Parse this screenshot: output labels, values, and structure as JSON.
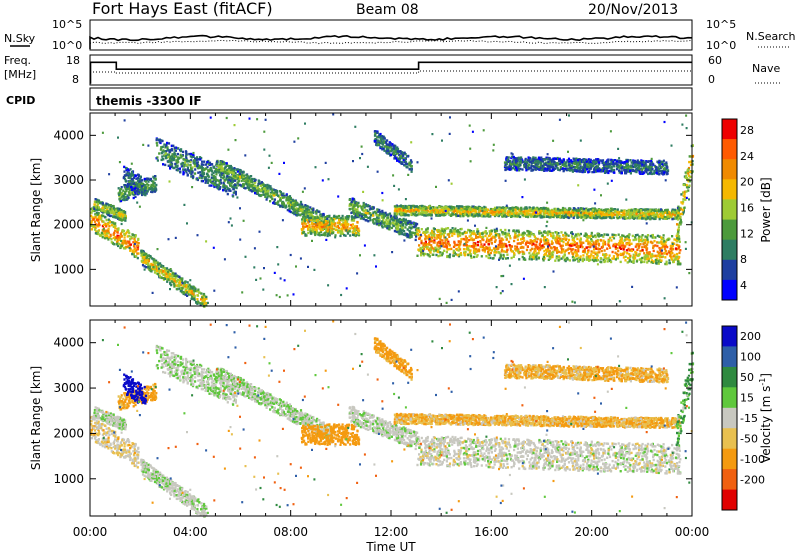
{
  "header": {
    "station": "Fort Hays East (fitACF)",
    "beam": "Beam 08",
    "date": "20/Nov/2013"
  },
  "top_panels": {
    "nsky_label": "N.Sky",
    "nsearch_label": "N.Search",
    "noise_ticks_left": [
      "10^5",
      "10^0"
    ],
    "noise_ticks_right": [
      "10^5",
      "10^0"
    ],
    "freq_label_1": "Freq.",
    "freq_label_2": "[MHz]",
    "freq_ticks": [
      "18",
      "8"
    ],
    "nave_label": "Nave",
    "nave_ticks": [
      "60",
      "0"
    ],
    "cpid_label": "CPID",
    "cpid_text": "themis -3300 IF"
  },
  "colors": {
    "power_scale": [
      "#0000ff",
      "#1e3fa0",
      "#2e7d62",
      "#4c9a3c",
      "#9ecb34",
      "#f5b800",
      "#f08a00",
      "#ff5a00",
      "#ee0000"
    ],
    "velocity_scale": [
      "#0a0ac8",
      "#2e5fa8",
      "#2f8a40",
      "#5fc83c",
      "#c8c8c0",
      "#e8c050",
      "#f49a10",
      "#f06010",
      "#e00000"
    ]
  },
  "chart_data": [
    {
      "type": "heatmap",
      "name": "power",
      "ylabel": "Slant Range [km]",
      "yticks": [
        "4000",
        "3000",
        "2000",
        "1000"
      ],
      "ylim": [
        180,
        4500
      ],
      "xlim_hours": [
        0,
        24
      ],
      "xticks": [
        "00:00",
        "04:00",
        "08:00",
        "12:00",
        "16:00",
        "20:00",
        "00:00"
      ],
      "colorbar_label": "Power [dB]",
      "colorbar_ticks": [
        "28",
        "24",
        "20",
        "16",
        "12",
        "8",
        "4"
      ],
      "crange": [
        0,
        30
      ]
    },
    {
      "type": "heatmap",
      "name": "velocity",
      "ylabel": "Slant Range [km]",
      "yticks": [
        "4000",
        "3000",
        "2000",
        "1000"
      ],
      "ylim": [
        180,
        4500
      ],
      "xlim_hours": [
        0,
        24
      ],
      "xticks": [
        "00:00",
        "04:00",
        "08:00",
        "12:00",
        "16:00",
        "20:00",
        "00:00"
      ],
      "xlabel": "Time UT",
      "colorbar_label": "Velocity [m s",
      "colorbar_label_sup": "-1",
      "colorbar_label_end": "]",
      "colorbar_ticks": [
        "200",
        "100",
        "50",
        "15",
        "-15",
        "-50",
        "-100",
        "-200"
      ]
    }
  ],
  "frequency_trace": {
    "x_hours": [
      0,
      0.02,
      0.02,
      1.05,
      1.05,
      13.1,
      13.1,
      24
    ],
    "mhz": [
      8,
      8,
      17,
      17,
      14,
      14,
      17,
      17
    ]
  },
  "scatter_features": [
    {
      "from_h": 0.0,
      "to_h": 1.9,
      "r1": 2150,
      "r2": 1500,
      "w": 500,
      "p": 25,
      "v": -15
    },
    {
      "from_h": 0.1,
      "to_h": 1.4,
      "r1": 2500,
      "r2": 2200,
      "w": 250,
      "p": 17,
      "v": 5
    },
    {
      "from_h": 1.1,
      "to_h": 2.6,
      "r1": 2700,
      "r2": 2950,
      "w": 350,
      "p": 13,
      "v": -40
    },
    {
      "from_h": 1.3,
      "to_h": 2.2,
      "r1": 3150,
      "r2": 2800,
      "w": 450,
      "p": 8,
      "v": 210
    },
    {
      "from_h": 2.0,
      "to_h": 4.6,
      "r1": 1300,
      "r2": 280,
      "w": 330,
      "p": 19,
      "v": 5
    },
    {
      "from_h": 2.6,
      "to_h": 5.8,
      "r1": 3700,
      "r2": 2900,
      "w": 550,
      "p": 11,
      "v": 10
    },
    {
      "from_h": 5.0,
      "to_h": 9.6,
      "r1": 3350,
      "r2": 2000,
      "w": 350,
      "p": 14,
      "v": 10
    },
    {
      "from_h": 8.4,
      "to_h": 10.7,
      "r1": 2000,
      "r2": 2000,
      "w": 450,
      "p": 22,
      "v": -55
    },
    {
      "from_h": 10.3,
      "to_h": 13.0,
      "r1": 2450,
      "r2": 1850,
      "w": 380,
      "p": 14,
      "v": 5
    },
    {
      "from_h": 11.3,
      "to_h": 12.8,
      "r1": 4000,
      "r2": 3350,
      "w": 320,
      "p": 10,
      "v": -45
    },
    {
      "from_h": 12.1,
      "to_h": 23.5,
      "r1": 2350,
      "r2": 2250,
      "w": 220,
      "p": 20,
      "v": -30
    },
    {
      "from_h": 13.0,
      "to_h": 23.5,
      "r1": 1650,
      "r2": 1450,
      "w": 650,
      "p": 25,
      "v": 0
    },
    {
      "from_h": 16.5,
      "to_h": 23.0,
      "r1": 3400,
      "r2": 3300,
      "w": 300,
      "p": 9,
      "v": -30
    },
    {
      "from_h": 23.3,
      "to_h": 24.0,
      "r1": 1800,
      "r2": 3600,
      "w": 700,
      "p": 20,
      "v": 30
    }
  ]
}
